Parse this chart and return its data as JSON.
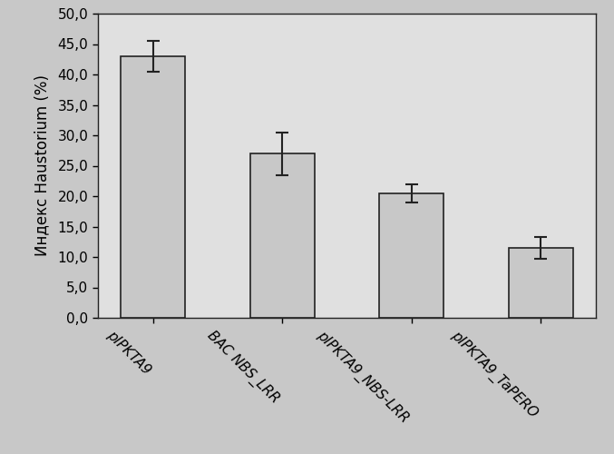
{
  "categories": [
    "pIPKTA9",
    "BAC NBS_LRR",
    "pIPKTA9_NBS-LRR",
    "pIPKTA9_TaPERO"
  ],
  "values": [
    43.0,
    27.0,
    20.5,
    11.5
  ],
  "errors": [
    2.5,
    3.5,
    1.5,
    1.8
  ],
  "ylabel": "Индекс Haustorium (%)",
  "ylim": [
    0,
    50
  ],
  "yticks": [
    0.0,
    5.0,
    10.0,
    15.0,
    20.0,
    25.0,
    30.0,
    35.0,
    40.0,
    45.0,
    50.0
  ],
  "ytick_labels": [
    "0,0",
    "5,0",
    "10,0",
    "15,0",
    "20,0",
    "25,0",
    "30,0",
    "35,0",
    "40,0",
    "45,0",
    "50,0"
  ],
  "bar_color": "#c8c8c8",
  "bar_edgecolor": "#222222",
  "figure_bg_color": "#c8c8c8",
  "plot_bg_color": "#e0e0e0",
  "errorbar_color": "#222222",
  "tick_label_fontsize": 11,
  "ylabel_fontsize": 12,
  "xtick_rotation": -45,
  "bar_width": 0.5
}
